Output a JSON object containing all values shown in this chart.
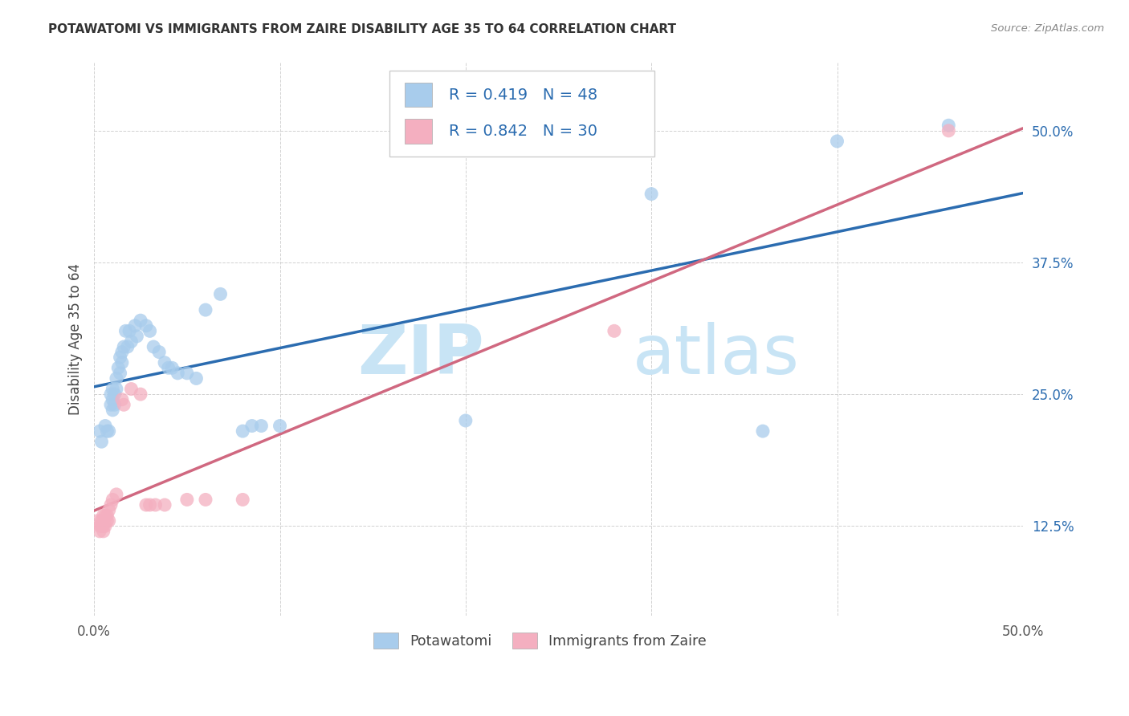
{
  "title": "POTAWATOMI VS IMMIGRANTS FROM ZAIRE DISABILITY AGE 35 TO 64 CORRELATION CHART",
  "source": "Source: ZipAtlas.com",
  "ylabel": "Disability Age 35 to 64",
  "xlim": [
    0.0,
    0.5
  ],
  "ylim": [
    0.04,
    0.565
  ],
  "yticks": [
    0.125,
    0.25,
    0.375,
    0.5
  ],
  "yticklabels": [
    "12.5%",
    "25.0%",
    "37.5%",
    "50.0%"
  ],
  "xticks": [
    0.0,
    0.1,
    0.2,
    0.3,
    0.4,
    0.5
  ],
  "xticklabels": [
    "0.0%",
    "",
    "",
    "",
    "",
    "50.0%"
  ],
  "R_blue": 0.419,
  "N_blue": 48,
  "R_pink": 0.842,
  "N_pink": 30,
  "blue_scatter_color": "#a8ccec",
  "pink_scatter_color": "#f4afc0",
  "blue_line_color": "#2b6cb0",
  "pink_line_color": "#d06880",
  "watermark_zip": "ZIP",
  "watermark_atlas": "atlas",
  "watermark_color": "#c8e4f5",
  "legend_labels": [
    "Potawatomi",
    "Immigrants from Zaire"
  ],
  "blue_points": [
    [
      0.003,
      0.215
    ],
    [
      0.004,
      0.205
    ],
    [
      0.006,
      0.22
    ],
    [
      0.007,
      0.215
    ],
    [
      0.008,
      0.215
    ],
    [
      0.009,
      0.25
    ],
    [
      0.009,
      0.24
    ],
    [
      0.01,
      0.255
    ],
    [
      0.01,
      0.245
    ],
    [
      0.01,
      0.235
    ],
    [
      0.011,
      0.25
    ],
    [
      0.011,
      0.24
    ],
    [
      0.012,
      0.265
    ],
    [
      0.012,
      0.255
    ],
    [
      0.013,
      0.275
    ],
    [
      0.014,
      0.285
    ],
    [
      0.014,
      0.27
    ],
    [
      0.015,
      0.29
    ],
    [
      0.015,
      0.28
    ],
    [
      0.016,
      0.295
    ],
    [
      0.017,
      0.31
    ],
    [
      0.018,
      0.295
    ],
    [
      0.019,
      0.31
    ],
    [
      0.02,
      0.3
    ],
    [
      0.022,
      0.315
    ],
    [
      0.023,
      0.305
    ],
    [
      0.025,
      0.32
    ],
    [
      0.028,
      0.315
    ],
    [
      0.03,
      0.31
    ],
    [
      0.032,
      0.295
    ],
    [
      0.035,
      0.29
    ],
    [
      0.038,
      0.28
    ],
    [
      0.04,
      0.275
    ],
    [
      0.042,
      0.275
    ],
    [
      0.045,
      0.27
    ],
    [
      0.05,
      0.27
    ],
    [
      0.055,
      0.265
    ],
    [
      0.06,
      0.33
    ],
    [
      0.068,
      0.345
    ],
    [
      0.08,
      0.215
    ],
    [
      0.085,
      0.22
    ],
    [
      0.09,
      0.22
    ],
    [
      0.1,
      0.22
    ],
    [
      0.2,
      0.225
    ],
    [
      0.3,
      0.44
    ],
    [
      0.36,
      0.215
    ],
    [
      0.4,
      0.49
    ],
    [
      0.46,
      0.505
    ]
  ],
  "pink_points": [
    [
      0.002,
      0.13
    ],
    [
      0.003,
      0.125
    ],
    [
      0.003,
      0.12
    ],
    [
      0.004,
      0.13
    ],
    [
      0.004,
      0.125
    ],
    [
      0.005,
      0.135
    ],
    [
      0.005,
      0.125
    ],
    [
      0.005,
      0.12
    ],
    [
      0.006,
      0.135
    ],
    [
      0.006,
      0.125
    ],
    [
      0.007,
      0.135
    ],
    [
      0.007,
      0.13
    ],
    [
      0.008,
      0.14
    ],
    [
      0.008,
      0.13
    ],
    [
      0.009,
      0.145
    ],
    [
      0.01,
      0.15
    ],
    [
      0.012,
      0.155
    ],
    [
      0.015,
      0.245
    ],
    [
      0.016,
      0.24
    ],
    [
      0.02,
      0.255
    ],
    [
      0.025,
      0.25
    ],
    [
      0.028,
      0.145
    ],
    [
      0.03,
      0.145
    ],
    [
      0.033,
      0.145
    ],
    [
      0.038,
      0.145
    ],
    [
      0.05,
      0.15
    ],
    [
      0.06,
      0.15
    ],
    [
      0.08,
      0.15
    ],
    [
      0.28,
      0.31
    ],
    [
      0.46,
      0.5
    ]
  ]
}
